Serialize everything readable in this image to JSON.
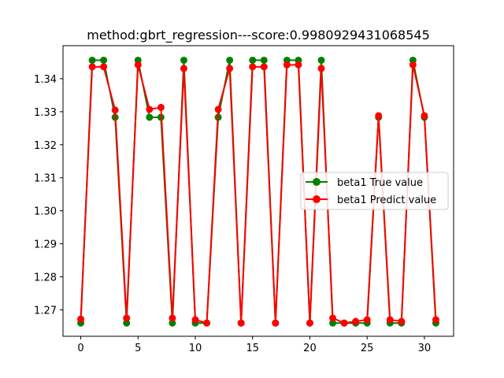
{
  "chart_data": {
    "type": "line",
    "title": "method:gbrt_regression---score:0.9980929431068545",
    "xlabel": "",
    "ylabel": "",
    "xlim": [
      -1.55,
      32.55
    ],
    "ylim": [
      1.262,
      1.35
    ],
    "x_ticks": [
      0,
      5,
      10,
      15,
      20,
      25,
      30
    ],
    "x_tick_labels": [
      "0",
      "5",
      "10",
      "15",
      "20",
      "25",
      "30"
    ],
    "y_ticks": [
      1.27,
      1.28,
      1.29,
      1.3,
      1.31,
      1.32,
      1.33,
      1.34
    ],
    "y_tick_labels": [
      "1.27",
      "1.28",
      "1.29",
      "1.30",
      "1.31",
      "1.32",
      "1.33",
      "1.34"
    ],
    "legend_position": "center-right",
    "x": [
      0,
      1,
      2,
      3,
      4,
      5,
      6,
      7,
      8,
      9,
      10,
      11,
      12,
      13,
      14,
      15,
      16,
      17,
      18,
      19,
      20,
      21,
      22,
      23,
      24,
      25,
      26,
      27,
      28,
      29,
      30,
      31
    ],
    "series": [
      {
        "name": "beta1 True value",
        "color": "#008000",
        "values": [
          1.266,
          1.3456,
          1.3456,
          1.3283,
          1.266,
          1.3456,
          1.3283,
          1.3283,
          1.266,
          1.3456,
          1.266,
          1.266,
          1.3283,
          1.3456,
          1.266,
          1.3456,
          1.3456,
          1.266,
          1.3456,
          1.3456,
          1.266,
          1.3456,
          1.266,
          1.266,
          1.266,
          1.266,
          1.3283,
          1.266,
          1.266,
          1.3456,
          1.3283,
          1.266
        ]
      },
      {
        "name": "beta1 Predict value",
        "color": "#ff0000",
        "values": [
          1.2672,
          1.3436,
          1.3436,
          1.3305,
          1.2675,
          1.3442,
          1.3307,
          1.3313,
          1.2675,
          1.3431,
          1.267,
          1.266,
          1.3307,
          1.3431,
          1.266,
          1.3436,
          1.3436,
          1.266,
          1.3442,
          1.3442,
          1.266,
          1.3431,
          1.2675,
          1.266,
          1.2665,
          1.267,
          1.3288,
          1.267,
          1.2665,
          1.3442,
          1.3288,
          1.267
        ]
      }
    ]
  }
}
